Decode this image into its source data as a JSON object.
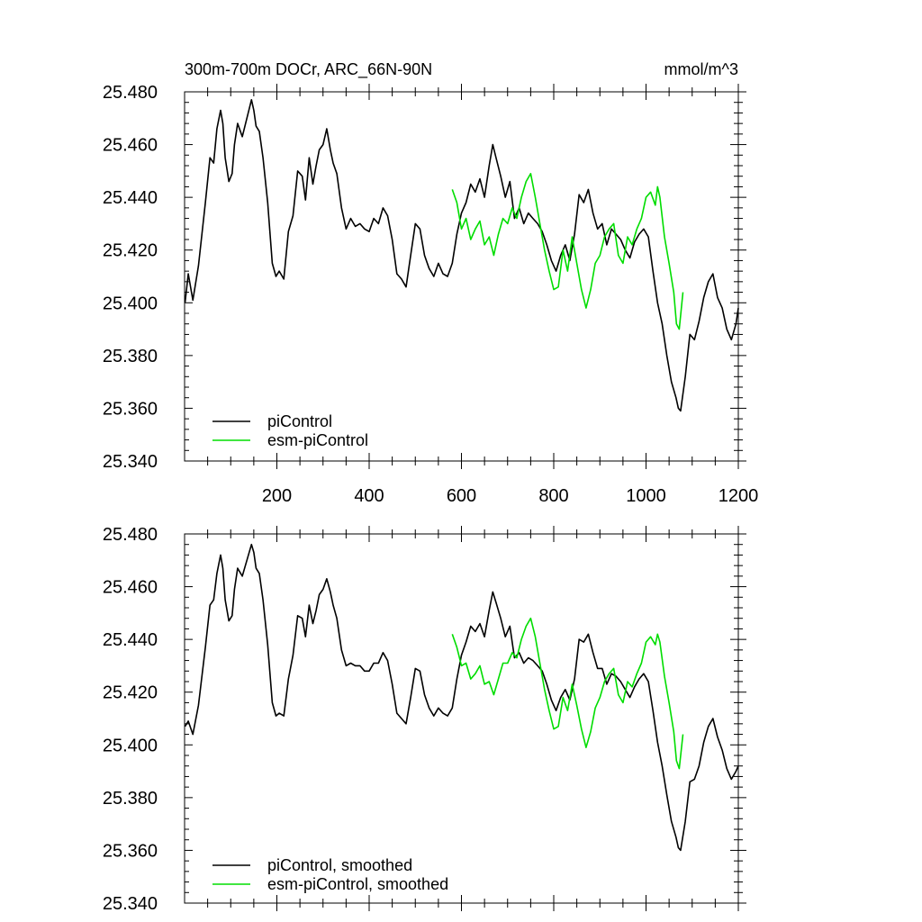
{
  "header": {
    "title": "300m-700m DOCr, ARC_66N-90N",
    "units": "mmol/m^3"
  },
  "colors": {
    "piControl": "#000000",
    "esm_piControl": "#00dd00"
  },
  "chart_data": [
    {
      "type": "line",
      "title": "300m-700m DOCr, ARC_66N-90N",
      "units": "mmol/m^3",
      "xlim": [
        0,
        1200
      ],
      "ylim": [
        25.34,
        25.48
      ],
      "x_ticks": [
        200,
        400,
        600,
        800,
        1000,
        1200
      ],
      "x_tick_labels": [
        "200",
        "400",
        "600",
        "800",
        "1000",
        "1200"
      ],
      "y_ticks": [
        25.34,
        25.36,
        25.38,
        25.4,
        25.42,
        25.44,
        25.46,
        25.48
      ],
      "y_tick_labels": [
        "25.340",
        "25.360",
        "25.380",
        "25.400",
        "25.420",
        "25.440",
        "25.460",
        "25.480"
      ],
      "grid": false,
      "legend_position": "bottom-left",
      "series": [
        {
          "name": "piControl",
          "color": "#000000",
          "x": [
            1,
            8,
            18,
            30,
            45,
            55,
            63,
            70,
            78,
            83,
            88,
            96,
            103,
            108,
            115,
            125,
            135,
            145,
            150,
            155,
            162,
            170,
            180,
            190,
            198,
            205,
            215,
            225,
            235,
            245,
            255,
            262,
            270,
            278,
            285,
            292,
            300,
            308,
            316,
            322,
            330,
            340,
            350,
            360,
            370,
            380,
            390,
            400,
            410,
            420,
            430,
            440,
            450,
            460,
            470,
            480,
            490,
            500,
            510,
            520,
            530,
            540,
            550,
            560,
            570,
            580,
            590,
            600,
            610,
            620,
            630,
            640,
            650,
            660,
            668,
            675,
            685,
            695,
            705,
            715,
            725,
            735,
            745,
            755,
            765,
            775,
            785,
            795,
            805,
            815,
            825,
            835,
            845,
            855,
            865,
            875,
            885,
            895,
            905,
            915,
            925,
            935,
            945,
            955,
            965,
            975,
            985,
            995,
            1005,
            1015,
            1025,
            1035,
            1045,
            1055,
            1065,
            1070,
            1075,
            1085,
            1095,
            1105,
            1115,
            1125,
            1135,
            1145,
            1155,
            1165,
            1175,
            1185,
            1195,
            1200
          ],
          "y": [
            25.4,
            25.411,
            25.401,
            25.414,
            25.438,
            25.455,
            25.453,
            25.466,
            25.473,
            25.468,
            25.455,
            25.446,
            25.449,
            25.46,
            25.468,
            25.463,
            25.47,
            25.477,
            25.473,
            25.467,
            25.465,
            25.455,
            25.438,
            25.415,
            25.41,
            25.412,
            25.409,
            25.427,
            25.433,
            25.45,
            25.448,
            25.439,
            25.455,
            25.445,
            25.452,
            25.458,
            25.46,
            25.466,
            25.458,
            25.453,
            25.449,
            25.436,
            25.428,
            25.432,
            25.429,
            25.43,
            25.428,
            25.427,
            25.432,
            25.43,
            25.436,
            25.433,
            25.424,
            25.411,
            25.409,
            25.406,
            25.418,
            25.43,
            25.428,
            25.418,
            25.413,
            25.41,
            25.415,
            25.411,
            25.41,
            25.415,
            25.426,
            25.434,
            25.438,
            25.445,
            25.442,
            25.447,
            25.44,
            25.452,
            25.46,
            25.455,
            25.448,
            25.44,
            25.446,
            25.432,
            25.436,
            25.43,
            25.434,
            25.432,
            25.43,
            25.427,
            25.422,
            25.416,
            25.412,
            25.418,
            25.422,
            25.416,
            25.426,
            25.441,
            25.438,
            25.443,
            25.434,
            25.428,
            25.43,
            25.422,
            25.428,
            25.426,
            25.424,
            25.42,
            25.417,
            25.423,
            25.426,
            25.428,
            25.425,
            25.412,
            25.4,
            25.392,
            25.38,
            25.37,
            25.364,
            25.36,
            25.359,
            25.372,
            25.388,
            25.386,
            25.393,
            25.402,
            25.408,
            25.411,
            25.402,
            25.398,
            25.39,
            25.386,
            25.392,
            25.398
          ]
        },
        {
          "name": "esm-piControl",
          "color": "#00dd00",
          "x": [
            580,
            590,
            600,
            610,
            620,
            630,
            640,
            650,
            660,
            670,
            680,
            690,
            700,
            710,
            720,
            730,
            740,
            750,
            760,
            770,
            780,
            790,
            800,
            810,
            820,
            830,
            840,
            850,
            860,
            870,
            880,
            890,
            900,
            910,
            920,
            930,
            940,
            950,
            960,
            970,
            980,
            990,
            1000,
            1010,
            1020,
            1025,
            1030,
            1040,
            1050,
            1060,
            1066,
            1072,
            1080
          ],
          "y": [
            25.443,
            25.438,
            25.428,
            25.432,
            25.424,
            25.428,
            25.431,
            25.422,
            25.425,
            25.418,
            25.426,
            25.432,
            25.43,
            25.436,
            25.432,
            25.44,
            25.446,
            25.449,
            25.44,
            25.43,
            25.42,
            25.412,
            25.405,
            25.406,
            25.42,
            25.412,
            25.425,
            25.415,
            25.405,
            25.398,
            25.405,
            25.415,
            25.418,
            25.425,
            25.428,
            25.43,
            25.418,
            25.415,
            25.425,
            25.422,
            25.428,
            25.432,
            25.44,
            25.442,
            25.437,
            25.444,
            25.44,
            25.425,
            25.415,
            25.404,
            25.392,
            25.39,
            25.404
          ]
        }
      ]
    },
    {
      "type": "line",
      "xlim": [
        0,
        1200
      ],
      "ylim": [
        25.34,
        25.48
      ],
      "y_ticks": [
        25.34,
        25.36,
        25.38,
        25.4,
        25.42,
        25.44,
        25.46,
        25.48
      ],
      "y_tick_labels": [
        "25.340",
        "25.360",
        "25.380",
        "25.400",
        "25.420",
        "25.440",
        "25.460",
        "25.480"
      ],
      "grid": false,
      "legend_position": "bottom-left",
      "series": [
        {
          "name": "piControl, smoothed",
          "color": "#000000",
          "x": [
            1,
            8,
            18,
            30,
            45,
            55,
            63,
            70,
            78,
            83,
            88,
            96,
            103,
            108,
            115,
            125,
            135,
            145,
            150,
            155,
            162,
            170,
            180,
            190,
            198,
            205,
            215,
            225,
            235,
            245,
            255,
            262,
            270,
            278,
            285,
            292,
            300,
            308,
            316,
            322,
            330,
            340,
            350,
            360,
            370,
            380,
            390,
            400,
            410,
            420,
            430,
            440,
            450,
            460,
            470,
            480,
            490,
            500,
            510,
            520,
            530,
            540,
            550,
            560,
            570,
            580,
            590,
            600,
            610,
            620,
            630,
            640,
            650,
            660,
            668,
            675,
            685,
            695,
            705,
            715,
            725,
            735,
            745,
            755,
            765,
            775,
            785,
            795,
            805,
            815,
            825,
            835,
            845,
            855,
            865,
            875,
            885,
            895,
            905,
            915,
            925,
            935,
            945,
            955,
            965,
            975,
            985,
            995,
            1005,
            1015,
            1025,
            1035,
            1045,
            1055,
            1065,
            1070,
            1075,
            1085,
            1095,
            1105,
            1115,
            1125,
            1135,
            1145,
            1155,
            1165,
            1175,
            1185,
            1195,
            1200
          ],
          "y": [
            25.407,
            25.409,
            25.404,
            25.415,
            25.437,
            25.453,
            25.455,
            25.465,
            25.472,
            25.467,
            25.455,
            25.447,
            25.449,
            25.459,
            25.467,
            25.464,
            25.47,
            25.476,
            25.473,
            25.467,
            25.465,
            25.455,
            25.438,
            25.416,
            25.411,
            25.412,
            25.411,
            25.425,
            25.434,
            25.449,
            25.448,
            25.441,
            25.453,
            25.446,
            25.451,
            25.457,
            25.459,
            25.463,
            25.458,
            25.453,
            25.448,
            25.436,
            25.43,
            25.431,
            25.43,
            25.43,
            25.428,
            25.428,
            25.431,
            25.431,
            25.435,
            25.432,
            25.423,
            25.412,
            25.41,
            25.408,
            25.418,
            25.429,
            25.428,
            25.419,
            25.414,
            25.411,
            25.414,
            25.412,
            25.411,
            25.414,
            25.425,
            25.434,
            25.439,
            25.445,
            25.443,
            25.446,
            25.441,
            25.451,
            25.458,
            25.454,
            25.448,
            25.441,
            25.445,
            25.433,
            25.435,
            25.431,
            25.433,
            25.432,
            25.43,
            25.428,
            25.423,
            25.417,
            25.413,
            25.418,
            25.421,
            25.417,
            25.425,
            25.44,
            25.439,
            25.442,
            25.435,
            25.429,
            25.429,
            25.423,
            25.427,
            25.426,
            25.424,
            25.421,
            25.418,
            25.422,
            25.425,
            25.427,
            25.424,
            25.413,
            25.401,
            25.392,
            25.381,
            25.371,
            25.365,
            25.361,
            25.36,
            25.371,
            25.386,
            25.387,
            25.392,
            25.401,
            25.407,
            25.41,
            25.403,
            25.398,
            25.391,
            25.387,
            25.39,
            25.392
          ]
        },
        {
          "name": "esm-piControl, smoothed",
          "color": "#00dd00",
          "x": [
            580,
            590,
            600,
            610,
            620,
            630,
            640,
            650,
            660,
            670,
            680,
            690,
            700,
            710,
            720,
            730,
            740,
            750,
            760,
            770,
            780,
            790,
            800,
            810,
            820,
            830,
            840,
            850,
            860,
            870,
            880,
            890,
            900,
            910,
            920,
            930,
            940,
            950,
            960,
            970,
            980,
            990,
            1000,
            1010,
            1020,
            1025,
            1030,
            1040,
            1050,
            1060,
            1066,
            1072,
            1080
          ],
          "y": [
            25.442,
            25.437,
            25.43,
            25.431,
            25.425,
            25.427,
            25.43,
            25.423,
            25.424,
            25.419,
            25.425,
            25.431,
            25.431,
            25.435,
            25.433,
            25.44,
            25.445,
            25.448,
            25.441,
            25.431,
            25.421,
            25.413,
            25.406,
            25.407,
            25.418,
            25.413,
            25.423,
            25.415,
            25.406,
            25.399,
            25.405,
            25.414,
            25.418,
            25.424,
            25.427,
            25.429,
            25.419,
            25.416,
            25.424,
            25.422,
            25.427,
            25.431,
            25.439,
            25.441,
            25.438,
            25.442,
            25.439,
            25.426,
            25.416,
            25.405,
            25.394,
            25.391,
            25.404
          ]
        }
      ]
    }
  ]
}
